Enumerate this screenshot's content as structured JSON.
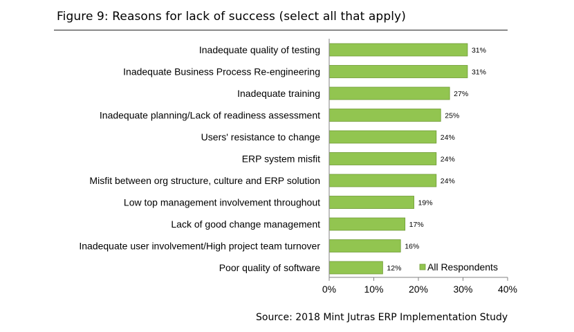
{
  "figure": {
    "title": "Figure 9: Reasons for lack of success (select all that apply)",
    "source": "Source: 2018 Mint Jutras ERP Implementation Study"
  },
  "chart_data": {
    "type": "bar",
    "orientation": "horizontal",
    "categories": [
      "Inadequate quality of testing",
      "Inadequate Business Process Re-engineering",
      "Inadequate training",
      "Inadequate planning/Lack of readiness assessment",
      "Users' resistance to change",
      "ERP system misfit",
      "Misfit between org structure, culture and ERP solution",
      "Low top management involvement throughout",
      "Lack of good change management",
      "Inadequate user involvement/High project team turnover",
      "Poor quality of software"
    ],
    "series": [
      {
        "name": "All Respondents",
        "values": [
          31,
          31,
          27,
          25,
          24,
          24,
          24,
          19,
          17,
          16,
          12
        ],
        "data_labels": [
          "31%",
          "31%",
          "27%",
          "25%",
          "24%",
          "24%",
          "24%",
          "19%",
          "17%",
          "16%",
          "12%"
        ]
      }
    ],
    "x_ticks": [
      "0%",
      "10%",
      "20%",
      "30%",
      "40%"
    ],
    "xlim": [
      0,
      40
    ],
    "grid": false,
    "legend": "bottom-right",
    "colors": {
      "bar": "#92c550",
      "bar_edge": "#6e9a34"
    }
  }
}
